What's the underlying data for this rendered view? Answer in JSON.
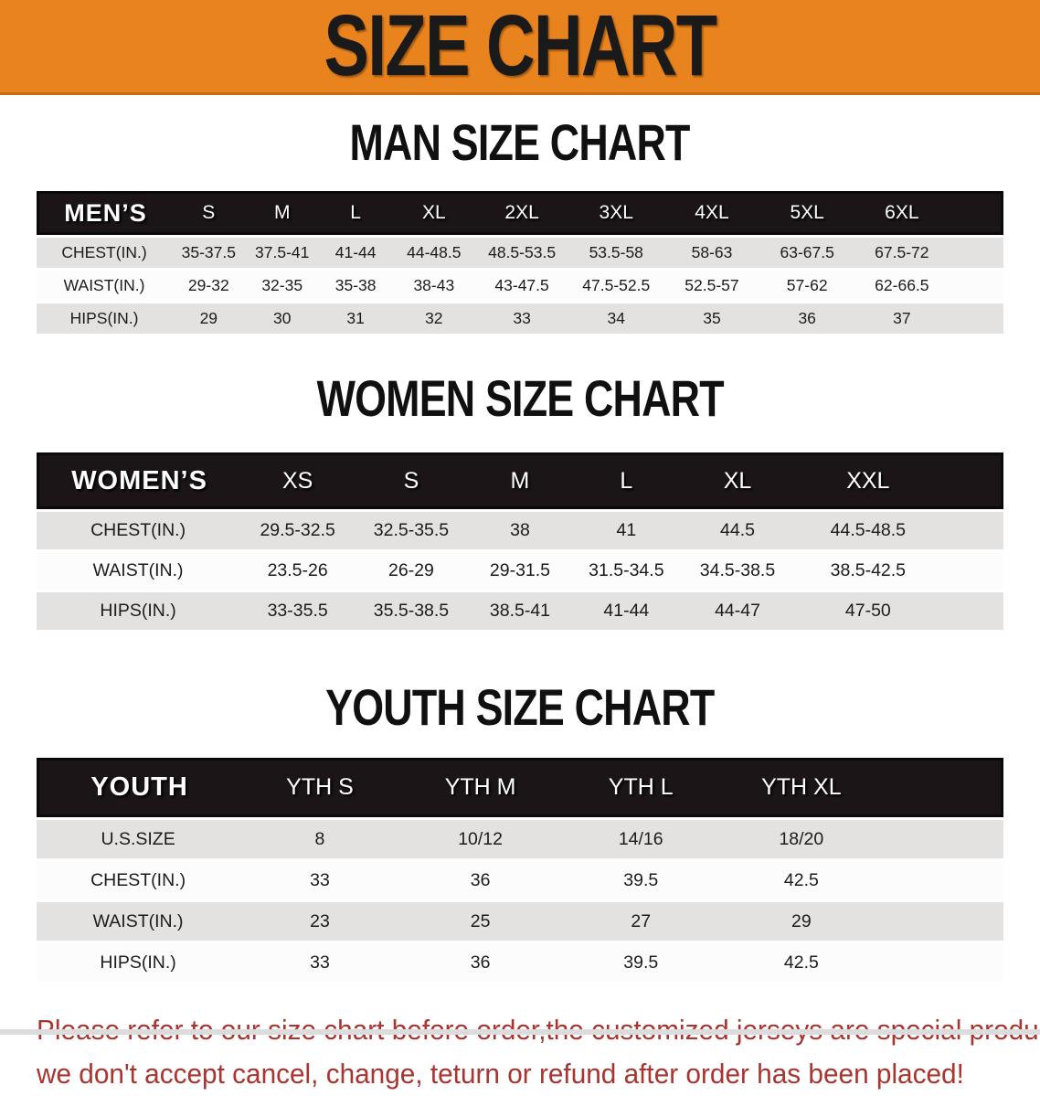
{
  "banner": {
    "title": "SIZE CHART"
  },
  "colors": {
    "banner_bg": "#E9831E",
    "banner_text": "#1A1A1A",
    "header_bg": "#1B1518",
    "header_text": "#FFFFFF",
    "row_gray": "#E3E2E0",
    "row_white": "#FCFCFC",
    "note_red": "#A93430"
  },
  "sections": [
    {
      "title": "MAN SIZE CHART",
      "label": "MEN’S",
      "sizes": [
        "S",
        "M",
        "L",
        "XL",
        "2XL",
        "3XL",
        "4XL",
        "5XL",
        "6XL"
      ],
      "rows": [
        {
          "label": "CHEST(IN.)",
          "values": [
            "35-37.5",
            "37.5-41",
            "41-44",
            "44-48.5",
            "48.5-53.5",
            "53.5-58",
            "58-63",
            "63-67.5",
            "67.5-72"
          ]
        },
        {
          "label": "WAIST(IN.)",
          "values": [
            "29-32",
            "32-35",
            "35-38",
            "38-43",
            "43-47.5",
            "47.5-52.5",
            "52.5-57",
            "57-62",
            "62-66.5"
          ]
        },
        {
          "label": "HIPS(IN.)",
          "values": [
            "29",
            "30",
            "31",
            "32",
            "33",
            "34",
            "35",
            "36",
            "37"
          ]
        }
      ]
    },
    {
      "title": "WOMEN SIZE CHART",
      "label": "WOMEN’S",
      "sizes": [
        "XS",
        "S",
        "M",
        "L",
        "XL",
        "XXL"
      ],
      "rows": [
        {
          "label": "CHEST(IN.)",
          "values": [
            "29.5-32.5",
            "32.5-35.5",
            "38",
            "41",
            "44.5",
            "44.5-48.5"
          ]
        },
        {
          "label": "WAIST(IN.)",
          "values": [
            "23.5-26",
            "26-29",
            "29-31.5",
            "31.5-34.5",
            "34.5-38.5",
            "38.5-42.5"
          ]
        },
        {
          "label": "HIPS(IN.)",
          "values": [
            "33-35.5",
            "35.5-38.5",
            "38.5-41",
            "41-44",
            "44-47",
            "47-50"
          ]
        }
      ]
    },
    {
      "title": "YOUTH SIZE CHART",
      "label": "YOUTH",
      "sizes": [
        "YTH S",
        "YTH M",
        "YTH L",
        "YTH XL"
      ],
      "rows": [
        {
          "label": "U.S.SIZE",
          "values": [
            "8",
            "10/12",
            "14/16",
            "18/20"
          ]
        },
        {
          "label": "CHEST(IN.)",
          "values": [
            "33",
            "36",
            "39.5",
            "42.5"
          ]
        },
        {
          "label": "WAIST(IN.)",
          "values": [
            "23",
            "25",
            "27",
            "29"
          ]
        },
        {
          "label": "HIPS(IN.)",
          "values": [
            "33",
            "36",
            "39.5",
            "42.5"
          ]
        }
      ]
    }
  ],
  "note": {
    "line1": "Please refer to our size chart before order,the customized jerseys are special products,",
    "line2": "we don't accept cancel, change, teturn or refund after order has been placed!"
  }
}
